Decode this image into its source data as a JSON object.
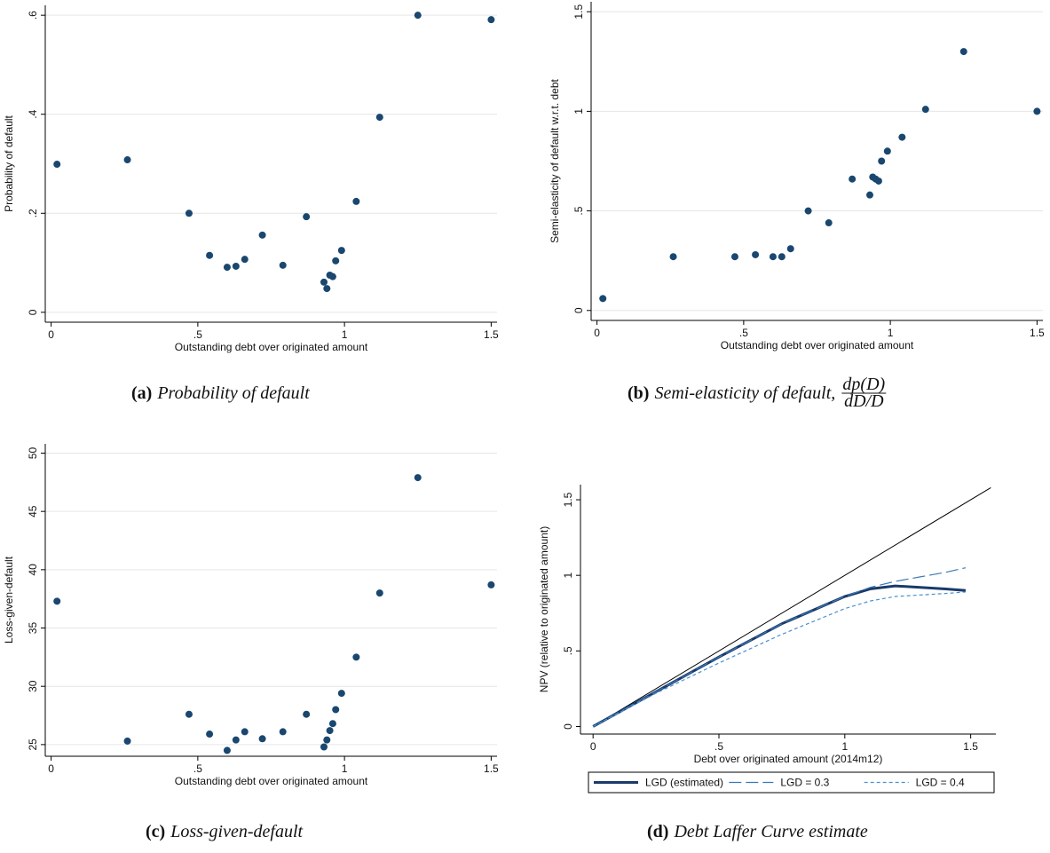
{
  "chart_data": [
    {
      "type": "scatter",
      "xlabel": "Outstanding debt over originated amount",
      "ylabel": "Probability of default",
      "x": [
        0.02,
        0.26,
        0.47,
        0.54,
        0.6,
        0.63,
        0.66,
        0.72,
        0.79,
        0.87,
        0.93,
        0.94,
        0.95,
        0.96,
        0.97,
        0.99,
        1.04,
        1.12,
        1.25,
        1.5
      ],
      "values": [
        0.299,
        0.308,
        0.2,
        0.115,
        0.091,
        0.093,
        0.107,
        0.156,
        0.095,
        0.193,
        0.061,
        0.048,
        0.075,
        0.072,
        0.104,
        0.125,
        0.224,
        0.394,
        0.6,
        0.591
      ],
      "color": "#1a476f",
      "xlim": [
        -0.02,
        1.52
      ],
      "ylim": [
        -0.02,
        0.62
      ],
      "xticks": [
        0,
        {
          "value": 0.5,
          "label": ".5"
        },
        1,
        1.5
      ],
      "yticks": [
        0,
        {
          "value": 0.2,
          "label": ".2"
        },
        {
          "value": 0.4,
          "label": ".4"
        },
        {
          "value": 0.6,
          "label": ".6"
        }
      ],
      "grid": true,
      "caption": {
        "label": "(a)",
        "text": "Probability of default"
      }
    },
    {
      "type": "scatter",
      "xlabel": "Outstanding debt over originated amount",
      "ylabel": "Semi-elasticity of default w.r.t. debt",
      "x": [
        0.02,
        0.26,
        0.47,
        0.54,
        0.6,
        0.63,
        0.66,
        0.72,
        0.79,
        0.87,
        0.93,
        0.94,
        0.95,
        0.96,
        0.97,
        0.99,
        1.04,
        1.12,
        1.25,
        1.5
      ],
      "values": [
        0.06,
        0.27,
        0.27,
        0.28,
        0.27,
        0.27,
        0.31,
        0.5,
        0.44,
        0.66,
        0.58,
        0.67,
        0.66,
        0.65,
        0.75,
        0.8,
        0.87,
        1.01,
        1.3,
        1.0
      ],
      "color": "#1a476f",
      "xlim": [
        -0.02,
        1.52
      ],
      "ylim": [
        -0.05,
        1.55
      ],
      "xticks": [
        0,
        {
          "value": 0.5,
          "label": ".5"
        },
        1,
        1.5
      ],
      "yticks": [
        0,
        {
          "value": 0.5,
          "label": ".5"
        },
        1,
        1.5
      ],
      "grid": true,
      "caption": {
        "label": "(b)",
        "text": "Semi-elasticity of default,",
        "numerator": "dp(D)",
        "denominator": "dD/D"
      }
    },
    {
      "type": "scatter",
      "xlabel": "Outstanding debt over originated amount",
      "ylabel": "Loss-given-default",
      "x": [
        0.02,
        0.26,
        0.47,
        0.54,
        0.6,
        0.63,
        0.66,
        0.72,
        0.79,
        0.87,
        0.93,
        0.94,
        0.95,
        0.96,
        0.97,
        0.99,
        1.04,
        1.12,
        1.25,
        1.5
      ],
      "values": [
        37.3,
        25.3,
        27.6,
        25.9,
        24.5,
        25.4,
        26.1,
        25.5,
        26.1,
        27.6,
        24.8,
        25.4,
        26.2,
        26.8,
        28.0,
        29.4,
        32.5,
        38.0,
        47.9,
        38.7
      ],
      "color": "#1a476f",
      "xlim": [
        -0.02,
        1.52
      ],
      "ylim": [
        24,
        50.8
      ],
      "xticks": [
        0,
        {
          "value": 0.5,
          "label": ".5"
        },
        1,
        1.5
      ],
      "yticks": [
        25,
        30,
        35,
        40,
        45,
        50
      ],
      "grid": true,
      "caption": {
        "label": "(c)",
        "text": "Loss-given-default"
      }
    },
    {
      "type": "line",
      "xlabel": "Debt over originated amount (2014m12)",
      "ylabel": "NPV (relative to originated amount)",
      "series": [
        {
          "x": [
            0,
            1.58
          ],
          "values": [
            0,
            1.58
          ],
          "color": "#000000",
          "linestyle": "solid",
          "width": 1
        },
        {
          "name": "LGD (estimated)",
          "x": [
            0,
            0.25,
            0.5,
            0.75,
            1.0,
            1.1,
            1.2,
            1.3,
            1.4,
            1.48
          ],
          "values": [
            0,
            0.23,
            0.46,
            0.68,
            0.86,
            0.91,
            0.93,
            0.92,
            0.91,
            0.9
          ],
          "color": "#1a3a6a",
          "linestyle": "solid",
          "width": 3
        },
        {
          "name": "LGD = 0.3",
          "x": [
            0,
            0.25,
            0.5,
            0.75,
            1.0,
            1.1,
            1.2,
            1.3,
            1.4,
            1.48
          ],
          "values": [
            0,
            0.23,
            0.46,
            0.68,
            0.86,
            0.92,
            0.96,
            0.99,
            1.02,
            1.05
          ],
          "color": "#3a78b5",
          "linestyle": "long-dash",
          "width": 1.2
        },
        {
          "name": "LGD = 0.4",
          "x": [
            0,
            0.25,
            0.5,
            0.75,
            1.0,
            1.1,
            1.2,
            1.3,
            1.4,
            1.48
          ],
          "values": [
            0,
            0.22,
            0.42,
            0.61,
            0.78,
            0.83,
            0.86,
            0.87,
            0.88,
            0.89
          ],
          "color": "#4a90d0",
          "linestyle": "short-dash",
          "width": 1.2
        }
      ],
      "xlim": [
        -0.05,
        1.6
      ],
      "ylim": [
        -0.05,
        1.6
      ],
      "xticks": [
        0,
        {
          "value": 0.5,
          "label": ".5"
        },
        1,
        1.5
      ],
      "yticks": [
        0,
        {
          "value": 0.5,
          "label": ".5"
        },
        1,
        1.5
      ],
      "grid": false,
      "legend": "bottom",
      "caption": {
        "label": "(d)",
        "text": "Debt Laffer Curve estimate"
      }
    }
  ]
}
